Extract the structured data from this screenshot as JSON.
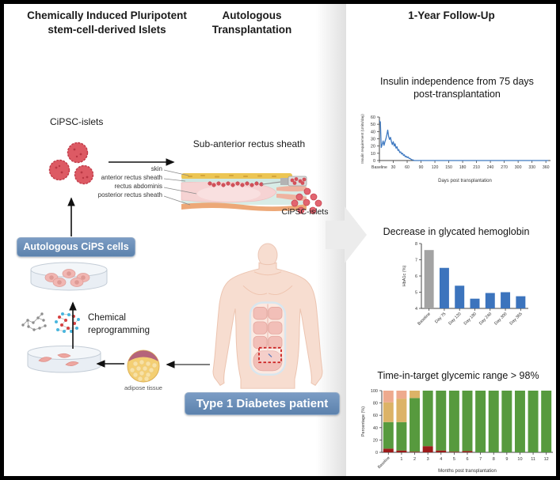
{
  "headers": {
    "left": "Chemically Induced Pluripotent\nstem-cell-derived Islets",
    "middle": "Autologous\nTransplantation",
    "right": "1-Year Follow-Up"
  },
  "left_panel": {
    "cipsc_islets_label": "CiPSC-islets",
    "autologous_cips_badge": "Autologous CiPS cells",
    "chemical_reprogramming_label": "Chemical\nreprogramming",
    "adipose_tissue_label": "adipose tissue"
  },
  "middle_panel": {
    "sub_anterior_title": "Sub-anterior rectus sheath",
    "anatomy_labels": [
      "skin",
      "anterior rectus sheath",
      "rectus abdominis",
      "posterior rectus sheath"
    ],
    "cipsc_islets_cluster_label": "CiPSC-islets",
    "patient_badge": "Type 1 Diabetes patient"
  },
  "colors": {
    "badge_blue": "#6288b4",
    "islet_red": "#d9545c",
    "flow_arrow_gray": "#ececec"
  },
  "chart_data": [
    {
      "type": "line",
      "title": "Insulin independence from 75 days\npost-transplantation",
      "xlabel": "Days post transplantation",
      "ylabel": "Insulin requirement (Units/day)",
      "xlim": [
        0,
        370
      ],
      "ylim": [
        0,
        60
      ],
      "y_ticks": [
        0,
        10,
        20,
        30,
        40,
        50,
        60
      ],
      "x_tick_values": [
        0,
        30,
        60,
        90,
        120,
        150,
        180,
        210,
        240,
        270,
        300,
        330,
        360
      ],
      "x_tick_labels": [
        "Baseline",
        "30",
        "60",
        "90",
        "120",
        "150",
        "180",
        "210",
        "240",
        "270",
        "300",
        "330",
        "360"
      ],
      "line_color": "#3f79c1",
      "x": [
        0,
        2,
        4,
        6,
        8,
        10,
        12,
        14,
        16,
        18,
        20,
        22,
        24,
        26,
        28,
        30,
        32,
        34,
        36,
        38,
        40,
        42,
        44,
        46,
        48,
        50,
        52,
        54,
        56,
        58,
        60,
        62,
        64,
        66,
        68,
        70,
        72,
        75,
        90,
        120,
        150,
        180,
        210,
        240,
        270,
        300,
        330,
        365
      ],
      "y": [
        55,
        53,
        18,
        22,
        27,
        21,
        26,
        30,
        35,
        42,
        33,
        29,
        32,
        26,
        22,
        26,
        20,
        23,
        17,
        19,
        14,
        15,
        11,
        12,
        9,
        10,
        7,
        8,
        5,
        6,
        4,
        5,
        3,
        3,
        2,
        1,
        1,
        0,
        0,
        0,
        0,
        0,
        0,
        0,
        0,
        0,
        0,
        0
      ]
    },
    {
      "type": "bar",
      "title": "Decrease in glycated hemoglobin",
      "ylabel": "HbA1c (%)",
      "categories": [
        "Baseline",
        "Day 75",
        "Day 120",
        "Day 180",
        "Day 240",
        "Day 300",
        "Day 365"
      ],
      "values": [
        7.6,
        6.5,
        5.4,
        4.6,
        4.95,
        5.0,
        4.75
      ],
      "bar_colors": [
        "#a3a3a3",
        "#3c74bd",
        "#3c74bd",
        "#3c74bd",
        "#3c74bd",
        "#3c74bd",
        "#3c74bd"
      ],
      "ylim": [
        4,
        8
      ],
      "y_ticks": [
        4,
        5,
        6,
        7,
        8
      ]
    },
    {
      "type": "stacked_bar",
      "title": "Time-in-target glycemic range > 98%",
      "xlabel": "Months post transplantation",
      "ylabel": "Percentage (%)",
      "categories": [
        "Baseline",
        "1",
        "2",
        "3",
        "4",
        "5",
        "6",
        "7",
        "8",
        "9",
        "10",
        "11",
        "12"
      ],
      "series": [
        {
          "name": "red-segment",
          "color": "#9c1b1b",
          "values": [
            6,
            3,
            1,
            10,
            3,
            1,
            2,
            0,
            0,
            0,
            0,
            0,
            0
          ]
        },
        {
          "name": "green-segment",
          "color": "#579a3e",
          "values": [
            43,
            46,
            87,
            90,
            97,
            99,
            98,
            100,
            100,
            100,
            100,
            100,
            100
          ]
        },
        {
          "name": "tan-segment",
          "color": "#dcb367",
          "values": [
            32,
            38,
            12,
            0,
            0,
            0,
            0,
            0,
            0,
            0,
            0,
            0,
            0
          ]
        },
        {
          "name": "salmon-segment",
          "color": "#eeaa8e",
          "values": [
            19,
            13,
            0,
            0,
            0,
            0,
            0,
            0,
            0,
            0,
            0,
            0,
            0
          ]
        }
      ],
      "ylim": [
        0,
        100
      ],
      "y_ticks": [
        0,
        20,
        40,
        60,
        80,
        100
      ]
    }
  ]
}
